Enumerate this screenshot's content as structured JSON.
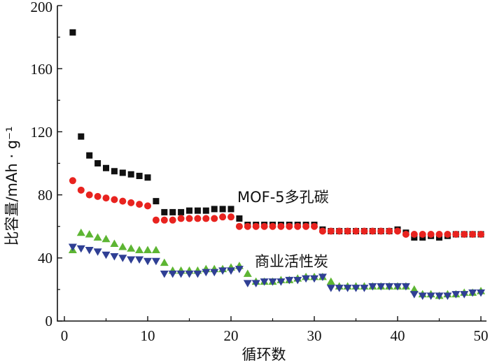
{
  "chart_data": {
    "type": "scatter",
    "title": "",
    "xlabel": "循环数",
    "ylabel": "比容量/mAh · g⁻¹",
    "xlim": [
      0,
      50
    ],
    "ylim": [
      0,
      200
    ],
    "xticks": [
      0,
      10,
      20,
      30,
      40,
      50
    ],
    "yticks": [
      0,
      40,
      80,
      120,
      160,
      200
    ],
    "annotations": [
      {
        "text": "MOF-5多孔碳",
        "x": 34,
        "y": 80
      },
      {
        "text": "商业活性炭",
        "x": 33.5,
        "y": 38
      }
    ],
    "series": [
      {
        "name": "MOF-5多孔碳 (black)",
        "marker": "square",
        "color": "#111111",
        "x": [
          1,
          2,
          3,
          4,
          5,
          6,
          7,
          8,
          9,
          10,
          11,
          12,
          13,
          14,
          15,
          16,
          17,
          18,
          19,
          20,
          21,
          22,
          23,
          24,
          25,
          26,
          27,
          28,
          29,
          30,
          31,
          32,
          33,
          34,
          35,
          36,
          37,
          38,
          39,
          40,
          41,
          42,
          43,
          44,
          45,
          46,
          47,
          48,
          49,
          50
        ],
        "y": [
          183,
          117,
          105,
          100,
          97,
          95,
          94,
          93,
          92,
          91,
          76,
          69,
          69,
          69,
          70,
          70,
          70,
          71,
          71,
          71,
          65,
          61,
          61,
          61,
          61,
          61,
          61,
          61,
          61,
          61,
          58,
          57,
          57,
          57,
          57,
          57,
          57,
          57,
          57,
          58,
          56,
          53,
          53,
          54,
          53,
          54,
          55,
          55,
          55,
          55
        ]
      },
      {
        "name": "MOF-5多孔碳 (red)",
        "marker": "circle",
        "color": "#e8231f",
        "x": [
          1,
          2,
          3,
          4,
          5,
          6,
          7,
          8,
          9,
          10,
          11,
          12,
          13,
          14,
          15,
          16,
          17,
          18,
          19,
          20,
          21,
          22,
          23,
          24,
          25,
          26,
          27,
          28,
          29,
          30,
          31,
          32,
          33,
          34,
          35,
          36,
          37,
          38,
          39,
          40,
          41,
          42,
          43,
          44,
          45,
          46,
          47,
          48,
          49,
          50
        ],
        "y": [
          89,
          83,
          80,
          79,
          78,
          77,
          76,
          75,
          74,
          73,
          64,
          64,
          64,
          65,
          65,
          65,
          65,
          65,
          66,
          66,
          60,
          60,
          60,
          60,
          60,
          60,
          60,
          60,
          60,
          60,
          57,
          57,
          57,
          57,
          57,
          57,
          57,
          57,
          57,
          57,
          55,
          55,
          55,
          55,
          55,
          55,
          55,
          55,
          55,
          55
        ]
      },
      {
        "name": "商业活性炭 (green)",
        "marker": "triangle-up",
        "color": "#5db533",
        "x": [
          1,
          2,
          3,
          4,
          5,
          6,
          7,
          8,
          9,
          10,
          11,
          12,
          13,
          14,
          15,
          16,
          17,
          18,
          19,
          20,
          21,
          22,
          23,
          24,
          25,
          26,
          27,
          28,
          29,
          30,
          31,
          32,
          33,
          34,
          35,
          36,
          37,
          38,
          39,
          40,
          41,
          42,
          43,
          44,
          45,
          46,
          47,
          48,
          49,
          50
        ],
        "y": [
          45,
          56,
          55,
          53,
          52,
          49,
          47,
          46,
          45,
          45,
          45,
          37,
          32,
          32,
          32,
          32,
          33,
          33,
          33,
          34,
          35,
          30,
          25,
          25,
          25,
          26,
          26,
          27,
          28,
          28,
          28,
          25,
          22,
          22,
          22,
          22,
          22,
          22,
          22,
          22,
          22,
          20,
          17,
          17,
          16,
          17,
          17,
          18,
          18,
          19
        ]
      },
      {
        "name": "商业活性炭 (blue)",
        "marker": "triangle-down",
        "color": "#2f3f94",
        "x": [
          1,
          2,
          3,
          4,
          5,
          6,
          7,
          8,
          9,
          10,
          11,
          12,
          13,
          14,
          15,
          16,
          17,
          18,
          19,
          20,
          21,
          22,
          23,
          24,
          25,
          26,
          27,
          28,
          29,
          30,
          31,
          32,
          33,
          34,
          35,
          36,
          37,
          38,
          39,
          40,
          41,
          42,
          43,
          44,
          45,
          46,
          47,
          48,
          49,
          50
        ],
        "y": [
          47,
          46,
          45,
          44,
          42,
          41,
          40,
          39,
          39,
          38,
          38,
          30,
          30,
          30,
          30,
          30,
          31,
          31,
          32,
          32,
          33,
          24,
          24,
          25,
          25,
          25,
          26,
          26,
          27,
          27,
          28,
          21,
          21,
          21,
          21,
          21,
          22,
          22,
          22,
          22,
          22,
          17,
          16,
          16,
          16,
          16,
          17,
          17,
          18,
          18
        ]
      }
    ]
  }
}
